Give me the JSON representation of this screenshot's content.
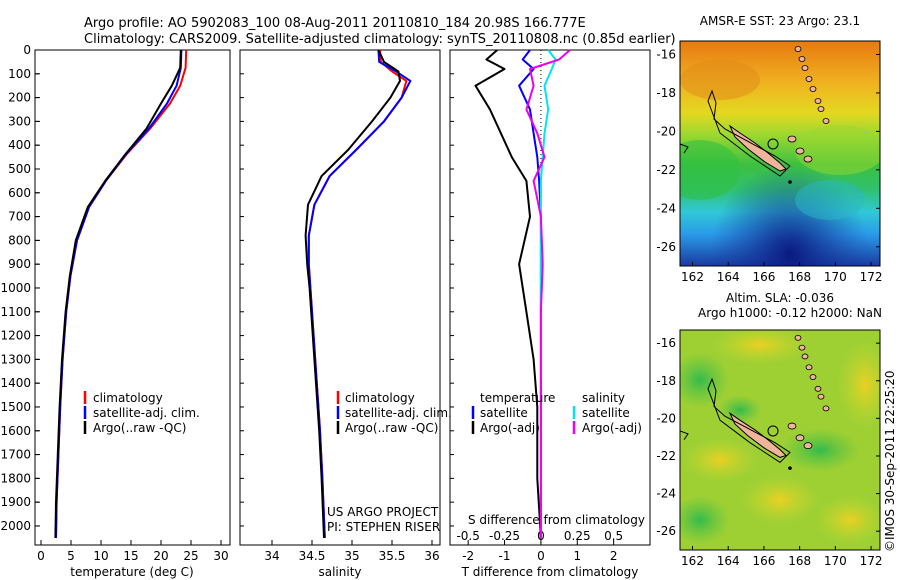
{
  "header": {
    "line1": "Argo profile: AO 5902083_100 08-Aug-2011 20110810_184 20.98S 166.777E",
    "line2": "Climatology: CARS2009. Satellite-adjusted climatology: synTS_20110808.nc (0.85d earlier)"
  },
  "colors": {
    "climatology": "#ff0000",
    "satellite": "#0000ff",
    "argo": "#000000",
    "s_satellite": "#00e5ee",
    "s_argo": "#ee00ee",
    "land": "#f0b49a"
  },
  "depth_axis": {
    "ticks": [
      0,
      100,
      200,
      300,
      400,
      500,
      600,
      700,
      800,
      900,
      1000,
      1100,
      1200,
      1300,
      1400,
      1500,
      1600,
      1700,
      1800,
      1900,
      2000
    ],
    "range": [
      0,
      2080
    ]
  },
  "chart_data": [
    {
      "type": "line",
      "xlabel": "temperature (deg C)",
      "xlim": [
        -1,
        31.5
      ],
      "xticks": [
        "0",
        "5",
        "10",
        "15",
        "20",
        "25",
        "30"
      ],
      "xtick_values": [
        0,
        5,
        10,
        15,
        20,
        25,
        30
      ],
      "legend": [
        "climatology",
        "satellite-adj. clim.",
        "Argo(..raw -QC)"
      ],
      "series": [
        {
          "name": "climatology",
          "color": "#ff0000",
          "x": [
            24.2,
            24.1,
            23.2,
            21.5,
            18.2,
            14.2,
            10.8,
            8.0,
            6.0,
            4.9,
            4.2,
            3.6,
            3.2,
            2.9,
            2.6,
            2.5
          ],
          "depth": [
            0,
            75,
            150,
            225,
            330,
            440,
            550,
            660,
            800,
            950,
            1100,
            1300,
            1500,
            1700,
            1900,
            2050
          ]
        },
        {
          "name": "satellite-adj. clim.",
          "color": "#0000ff",
          "x": [
            23.4,
            23.3,
            22.6,
            21.0,
            18.0,
            14.1,
            10.8,
            8.0,
            6.0,
            4.9,
            4.2,
            3.6,
            3.2,
            2.9,
            2.6,
            2.5
          ],
          "depth": [
            0,
            75,
            150,
            225,
            330,
            440,
            550,
            660,
            800,
            950,
            1100,
            1300,
            1500,
            1700,
            1900,
            2050
          ]
        },
        {
          "name": "Argo(..raw -QC)",
          "color": "#000000",
          "x": [
            23.3,
            23.2,
            21.8,
            20.0,
            17.6,
            14.0,
            10.7,
            7.8,
            5.8,
            4.8,
            4.1,
            3.5,
            3.1,
            2.8,
            2.5,
            2.4
          ],
          "depth": [
            0,
            75,
            150,
            225,
            330,
            440,
            550,
            660,
            800,
            950,
            1100,
            1300,
            1500,
            1700,
            1900,
            2050
          ]
        }
      ]
    },
    {
      "type": "line",
      "xlabel": "salinity",
      "xlim": [
        33.6,
        36.1
      ],
      "xticks": [
        "34",
        "34.5",
        "35",
        "35.5",
        "36"
      ],
      "xtick_values": [
        34,
        34.5,
        35,
        35.5,
        36
      ],
      "legend": [
        "climatology",
        "satellite-adj. clim.",
        "Argo(..raw -QC)"
      ],
      "annotation": [
        "US ARGO PROJECT",
        "PI: STEPHEN RISER"
      ],
      "series": [
        {
          "name": "climatology",
          "color": "#ff0000",
          "x": [
            35.35,
            35.36,
            35.5,
            35.68,
            35.62,
            35.4,
            35.05,
            34.72,
            34.53,
            34.46,
            34.46,
            34.48,
            34.52,
            34.56,
            34.6,
            34.63,
            34.66
          ],
          "depth": [
            0,
            50,
            90,
            130,
            200,
            300,
            420,
            530,
            650,
            780,
            900,
            1000,
            1200,
            1400,
            1600,
            1800,
            2050
          ]
        },
        {
          "name": "satellite-adj. clim.",
          "color": "#0000ff",
          "x": [
            35.33,
            35.34,
            35.55,
            35.73,
            35.62,
            35.4,
            35.05,
            34.72,
            34.53,
            34.46,
            34.46,
            34.48,
            34.52,
            34.56,
            34.6,
            34.63,
            34.66
          ],
          "depth": [
            0,
            50,
            90,
            130,
            200,
            300,
            420,
            530,
            650,
            780,
            900,
            1000,
            1200,
            1400,
            1600,
            1800,
            2050
          ]
        },
        {
          "name": "Argo(..raw -QC)",
          "color": "#000000",
          "x": [
            35.33,
            35.4,
            35.58,
            35.6,
            35.48,
            35.25,
            34.95,
            34.62,
            34.45,
            34.42,
            34.44,
            34.47,
            34.51,
            34.55,
            34.59,
            34.62,
            34.65
          ],
          "depth": [
            0,
            50,
            90,
            130,
            200,
            300,
            420,
            530,
            650,
            780,
            900,
            1000,
            1200,
            1400,
            1600,
            1800,
            2050
          ]
        }
      ]
    },
    {
      "type": "line",
      "xlabel": "T difference from climatology",
      "xlabel2": "S difference from climatology",
      "xlim": [
        -2.5,
        3
      ],
      "xticks": [
        "-2",
        "-1",
        "0",
        "1",
        "2"
      ],
      "xtick_values": [
        -2,
        -1,
        0,
        1,
        2
      ],
      "top_ticks": [
        "-0.5",
        "-0.25",
        "0",
        "0.25",
        "0.5"
      ],
      "top_tick_values": [
        -2,
        -1,
        0,
        1,
        2
      ],
      "legend_left_title": "temperature",
      "legend_right_title": "salinity",
      "legend_left": [
        "satellite",
        "Argo(-adj)"
      ],
      "legend_right": [
        "satellite",
        "Argo(-adj)"
      ],
      "series": [
        {
          "name": "T satellite",
          "color": "#0000ff",
          "x": [
            -0.3,
            -0.5,
            -0.2,
            -0.6,
            -0.3,
            -0.2,
            -0.1,
            -0.05,
            0,
            0,
            0,
            0,
            0,
            0,
            0
          ],
          "depth": [
            0,
            40,
            80,
            150,
            250,
            350,
            450,
            550,
            700,
            900,
            1100,
            1300,
            1500,
            1800,
            2050
          ]
        },
        {
          "name": "T argo",
          "color": "#000000",
          "x": [
            -1.2,
            -1.5,
            -1.0,
            -1.8,
            -1.4,
            -1.1,
            -0.8,
            -0.4,
            -0.3,
            -0.6,
            -0.4,
            -0.2,
            -0.1,
            -0.1,
            0
          ],
          "depth": [
            0,
            40,
            80,
            150,
            250,
            350,
            450,
            550,
            700,
            900,
            1100,
            1300,
            1500,
            1800,
            2050
          ]
        },
        {
          "name": "S satellite",
          "color": "#00e5ee",
          "x": [
            0.2,
            0.4,
            0.3,
            0.1,
            0.2,
            0.1,
            0.05,
            0,
            0,
            0,
            0,
            0,
            0,
            0,
            0
          ],
          "depth": [
            0,
            40,
            80,
            150,
            250,
            350,
            450,
            550,
            700,
            900,
            1100,
            1300,
            1500,
            1800,
            2050
          ]
        },
        {
          "name": "S argo",
          "color": "#ee00ee",
          "x": [
            0.8,
            0.5,
            -0.3,
            -0.2,
            -0.4,
            -0.1,
            0.1,
            -0.2,
            0,
            0.05,
            0,
            0,
            0,
            0,
            0
          ],
          "depth": [
            0,
            40,
            80,
            150,
            250,
            350,
            450,
            550,
            700,
            900,
            1100,
            1300,
            1500,
            1800,
            2050
          ]
        }
      ]
    },
    {
      "type": "heatmap",
      "title": "AMSR-E SST: 23 Argo: 23.1",
      "xticks": [
        "162",
        "164",
        "166",
        "168",
        "170",
        "172"
      ],
      "xtick_values": [
        162,
        164,
        166,
        168,
        170,
        172
      ],
      "yticks": [
        "-16",
        "-18",
        "-20",
        "-22",
        "-24",
        "-26"
      ],
      "ytick_values": [
        -16,
        -18,
        -20,
        -22,
        -24,
        -26
      ],
      "xlim": [
        161.3,
        172.5
      ],
      "ylim": [
        -27.0,
        -15.3
      ]
    },
    {
      "type": "heatmap",
      "title_line1": "Altim. SLA: -0.036",
      "title_line2": "Argo h1000: -0.12 h2000: NaN",
      "xticks": [
        "162",
        "164",
        "166",
        "168",
        "170",
        "172"
      ],
      "xtick_values": [
        162,
        164,
        166,
        168,
        170,
        172
      ],
      "yticks": [
        "-16",
        "-18",
        "-20",
        "-22",
        "-24",
        "-26"
      ],
      "ytick_values": [
        -16,
        -18,
        -20,
        -22,
        -24,
        -26
      ],
      "xlim": [
        161.3,
        172.5
      ],
      "ylim": [
        -27.0,
        -15.3
      ]
    }
  ],
  "footer": {
    "stamp": "©IMOS 30-Sep-2011 22:25:20"
  }
}
